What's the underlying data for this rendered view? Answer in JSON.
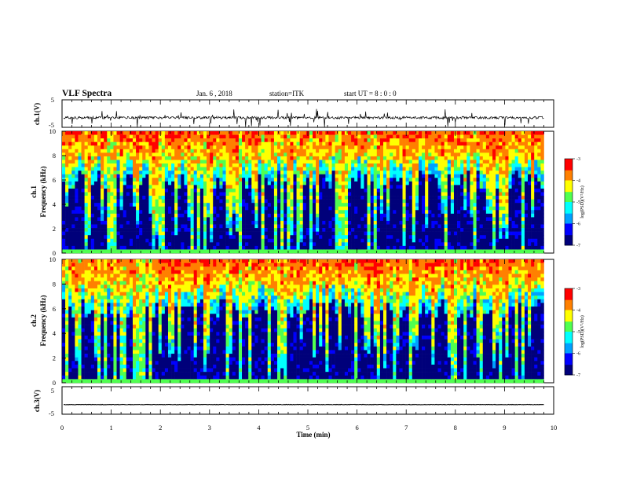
{
  "header": {
    "title": "VLF Spectra",
    "date": "Jan. 6 , 2018",
    "station": "station=ITK",
    "start": "start UT =  8 : 0 : 0"
  },
  "colors": {
    "colormap": [
      "#00007a",
      "#0000ff",
      "#00a0ff",
      "#00ffff",
      "#50ff50",
      "#ffff00",
      "#ff8000",
      "#ff0000",
      "#ffffff"
    ]
  },
  "chart_data": [
    {
      "type": "line",
      "panel": "ch1-waveform",
      "ylabel": "ch.1(V)",
      "ylim": [
        -5,
        5
      ],
      "yticks": [
        "5",
        "-5"
      ],
      "x_units": "min",
      "xlim": [
        0,
        10
      ],
      "baseline": -1.5,
      "series": [
        {
          "values": []
        }
      ]
    },
    {
      "type": "heatmap",
      "panel": "ch1-spectrogram",
      "ylabel_lines": [
        "ch.1",
        "Frequency (kHz)"
      ],
      "ylim": [
        0,
        10
      ],
      "yticks": [
        "0",
        "2",
        "4",
        "6",
        "8",
        "10"
      ],
      "xlim": [
        0,
        9.8
      ],
      "colorbar": {
        "label": "log(PSD)(V²/Hz)",
        "range": [
          -7,
          -3
        ],
        "ticks": [
          "-3",
          "-4",
          "-5",
          "-6",
          "-7"
        ]
      }
    },
    {
      "type": "heatmap",
      "panel": "ch2-spectrogram",
      "ylabel_lines": [
        "ch.2",
        "Frequency (kHz)"
      ],
      "ylim": [
        0,
        10
      ],
      "yticks": [
        "0",
        "2",
        "4",
        "6",
        "8",
        "10"
      ],
      "xlim": [
        0,
        9.8
      ],
      "colorbar": {
        "label": "log(PSD)(V²/Hz)",
        "range": [
          -7,
          -3
        ],
        "ticks": [
          "-3",
          "-4",
          "-5",
          "-6",
          "-7"
        ]
      }
    },
    {
      "type": "line",
      "panel": "ch3-waveform",
      "ylabel": "ch.3(V)",
      "ylim": [
        -5,
        5
      ],
      "yticks": [
        "5",
        "-5"
      ],
      "xlim": [
        0,
        10
      ],
      "baseline": -1.5,
      "series": [
        {
          "values": []
        }
      ]
    }
  ],
  "xaxis": {
    "label": "Time (min)",
    "ticks": [
      "0",
      "1",
      "2",
      "3",
      "4",
      "5",
      "6",
      "7",
      "8",
      "9",
      "10"
    ],
    "range": [
      0,
      10
    ]
  }
}
